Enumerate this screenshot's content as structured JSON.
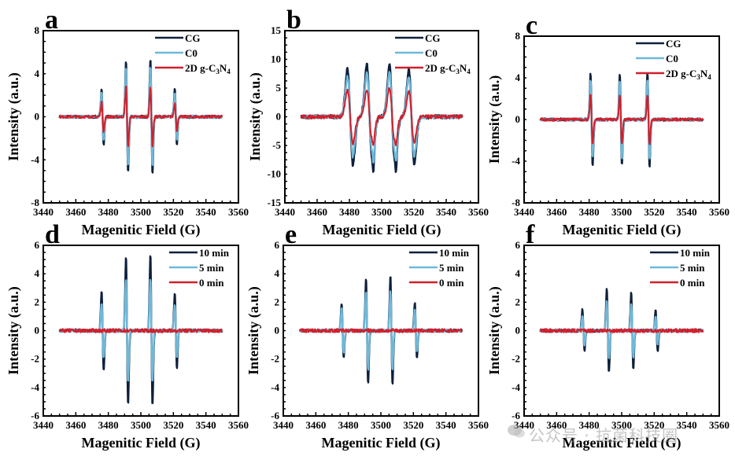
{
  "chart_data": [
    {
      "panel": "a",
      "type": "line",
      "xlabel": "Magenitic Field (G)",
      "ylabel": "Intensity (a.u.)",
      "xlim": [
        3440,
        3560
      ],
      "ylim": [
        -8,
        8
      ],
      "xticks": [
        3440,
        3460,
        3480,
        3500,
        3520,
        3540,
        3560
      ],
      "yticks": [
        -8,
        -4,
        0,
        4,
        8
      ],
      "legend_position": "top-right",
      "pattern": "quartet",
      "peak_centers": [
        3476.5,
        3491.5,
        3506.5,
        3521.5
      ],
      "series": [
        {
          "name": "CG",
          "color": "#0d1f3c",
          "peak_amplitudes": [
            2.7,
            5.3,
            5.4,
            2.6
          ]
        },
        {
          "name": "C0",
          "color": "#6fb8d8",
          "peak_amplitudes": [
            2.3,
            4.6,
            4.7,
            2.2
          ]
        },
        {
          "name": "2D g-C3N4",
          "legend_main": "2D g-C",
          "legend_sub1": "3",
          "legend_mid": "N",
          "legend_sub2": "4",
          "color": "#d0202c",
          "peak_amplitudes": [
            1.4,
            2.9,
            2.8,
            1.3
          ]
        }
      ]
    },
    {
      "panel": "b",
      "type": "line",
      "xlabel": "Magenitic Field (G)",
      "ylabel": "Intensity (a.u.)",
      "xlim": [
        3440,
        3560
      ],
      "ylim": [
        -15,
        15
      ],
      "xticks": [
        3440,
        3460,
        3480,
        3500,
        3520,
        3540,
        3560
      ],
      "yticks": [
        -15,
        -10,
        -5,
        0,
        5,
        10,
        15
      ],
      "legend_position": "top-right",
      "pattern": "broad-quartet",
      "peak_centers": [
        3480.5,
        3492.5,
        3506.5,
        3518.5
      ],
      "series": [
        {
          "name": "CG",
          "color": "#0d1f3c",
          "peak_amplitudes": [
            8.5,
            9.2,
            9.3,
            8.3
          ]
        },
        {
          "name": "C0",
          "color": "#6fb8d8",
          "peak_amplitudes": [
            7.0,
            7.6,
            7.7,
            6.9
          ]
        },
        {
          "name": "2D g-C3N4",
          "legend_main": "2D g-C",
          "legend_sub1": "3",
          "legend_mid": "N",
          "legend_sub2": "4",
          "color": "#d0202c",
          "peak_amplitudes": [
            4.6,
            4.9,
            5.0,
            4.5
          ]
        }
      ]
    },
    {
      "panel": "c",
      "type": "line",
      "xlabel": "Magenitic Field (G)",
      "ylabel": "Intensity (a.u.)",
      "xlim": [
        3440,
        3560
      ],
      "ylim": [
        -8,
        8
      ],
      "xticks": [
        3440,
        3460,
        3480,
        3500,
        3520,
        3540,
        3560
      ],
      "yticks": [
        -8,
        -4,
        0,
        4,
        8
      ],
      "legend_position": "top-right",
      "pattern": "triplet",
      "peak_centers": [
        3481.5,
        3499.5,
        3516.5
      ],
      "series": [
        {
          "name": "CG",
          "color": "#0d1f3c",
          "peak_amplitudes": [
            4.5,
            4.5,
            4.6
          ]
        },
        {
          "name": "C0",
          "color": "#6fb8d8",
          "peak_amplitudes": [
            3.8,
            3.8,
            3.9
          ]
        },
        {
          "name": "2D g-C3N4",
          "legend_main": "2D g-C",
          "legend_sub1": "3",
          "legend_mid": "N",
          "legend_sub2": "4",
          "color": "#d0202c",
          "peak_amplitudes": [
            2.4,
            2.5,
            2.4
          ]
        }
      ]
    },
    {
      "panel": "d",
      "type": "line",
      "xlabel": "Magenitic Field (G)",
      "ylabel": "Intensity (a.u.)",
      "xlim": [
        3440,
        3560
      ],
      "ylim": [
        -6,
        6
      ],
      "xticks": [
        3440,
        3460,
        3480,
        3500,
        3520,
        3540,
        3560
      ],
      "yticks": [
        -6,
        -4,
        -2,
        0,
        2,
        4,
        6
      ],
      "legend_position": "top-right",
      "pattern": "quartet",
      "peak_centers": [
        3476.5,
        3491.5,
        3506.5,
        3521.5
      ],
      "series": [
        {
          "name": "10 min",
          "color": "#0d1f3c",
          "peak_amplitudes": [
            2.8,
            5.3,
            5.4,
            2.7
          ]
        },
        {
          "name": "5 min",
          "color": "#6fb8d8",
          "peak_amplitudes": [
            2.0,
            3.7,
            3.7,
            1.9
          ]
        },
        {
          "name": "0 min",
          "color": "#d0202c",
          "peak_amplitudes": [
            0,
            0,
            0,
            0
          ]
        }
      ]
    },
    {
      "panel": "e",
      "type": "line",
      "xlabel": "Magenitic Field (G)",
      "ylabel": "Intensity (a.u.)",
      "xlim": [
        3440,
        3560
      ],
      "ylim": [
        -6,
        6
      ],
      "xticks": [
        3440,
        3460,
        3480,
        3500,
        3520,
        3540,
        3560
      ],
      "yticks": [
        -6,
        -4,
        -2,
        0,
        2,
        4,
        6
      ],
      "legend_position": "top-right",
      "pattern": "quartet",
      "peak_centers": [
        3476.5,
        3491.5,
        3506.5,
        3521.5
      ],
      "series": [
        {
          "name": "10 min",
          "color": "#0d1f3c",
          "peak_amplitudes": [
            2.0,
            3.8,
            3.9,
            2.0
          ]
        },
        {
          "name": "5 min",
          "color": "#6fb8d8",
          "peak_amplitudes": [
            1.6,
            2.8,
            2.8,
            1.5
          ]
        },
        {
          "name": "0 min",
          "color": "#d0202c",
          "peak_amplitudes": [
            0,
            0,
            0,
            0
          ]
        }
      ]
    },
    {
      "panel": "f",
      "type": "line",
      "xlabel": "Magenitic Field (G)",
      "ylabel": "Intensity (a.u.)",
      "xlim": [
        3440,
        3560
      ],
      "ylim": [
        -6,
        6
      ],
      "xticks": [
        3440,
        3460,
        3480,
        3500,
        3520,
        3540,
        3560
      ],
      "yticks": [
        -6,
        -4,
        -2,
        0,
        2,
        4,
        6
      ],
      "legend_position": "top-right",
      "pattern": "quartet",
      "peak_centers": [
        3476.5,
        3491.5,
        3506.5,
        3521.5
      ],
      "series": [
        {
          "name": "10 min",
          "color": "#0d1f3c",
          "peak_amplitudes": [
            1.5,
            3.0,
            2.7,
            1.5
          ]
        },
        {
          "name": "5 min",
          "color": "#6fb8d8",
          "peak_amplitudes": [
            1.1,
            2.1,
            1.9,
            1.0
          ]
        },
        {
          "name": "0 min",
          "color": "#d0202c",
          "peak_amplitudes": [
            0,
            0,
            0,
            0
          ]
        }
      ]
    }
  ],
  "watermark": {
    "text": "公众号 · 抗菌科技圈",
    "icon": "wechat-icon"
  }
}
